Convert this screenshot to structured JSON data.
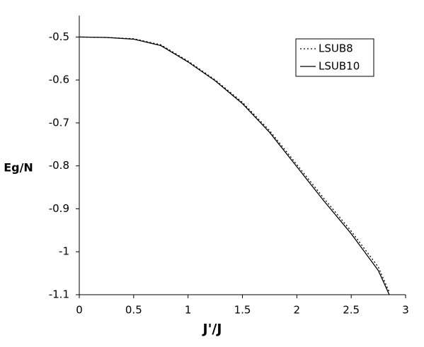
{
  "chart_data": {
    "type": "line",
    "x_label": "J'/J",
    "y_label": "Eg/N",
    "x": [
      0,
      0.25,
      0.5,
      0.75,
      1,
      1.25,
      1.5,
      1.75,
      2,
      2.25,
      2.5,
      2.75,
      2.85
    ],
    "series": [
      {
        "name": "LSUB8",
        "color": "#000000",
        "dash": "dotted",
        "values": [
          -0.5,
          -0.501,
          -0.504,
          -0.518,
          -0.556,
          -0.6,
          -0.652,
          -0.718,
          -0.797,
          -0.876,
          -0.952,
          -1.036,
          -1.094
        ]
      },
      {
        "name": "LSUB10",
        "color": "#000000",
        "dash": "solid",
        "values": [
          -0.5,
          -0.501,
          -0.505,
          -0.52,
          -0.558,
          -0.602,
          -0.655,
          -0.722,
          -0.802,
          -0.882,
          -0.958,
          -1.044,
          -1.1
        ]
      }
    ],
    "xlim": [
      0,
      3
    ],
    "ylim": [
      -1.1,
      -0.45
    ],
    "xticks": [
      0,
      0.5,
      1,
      1.5,
      2,
      2.5,
      3
    ],
    "yticks": [
      -0.5,
      -0.6,
      -0.7,
      -0.8,
      -0.9,
      -1,
      -1.1
    ],
    "legend": "upper right"
  }
}
